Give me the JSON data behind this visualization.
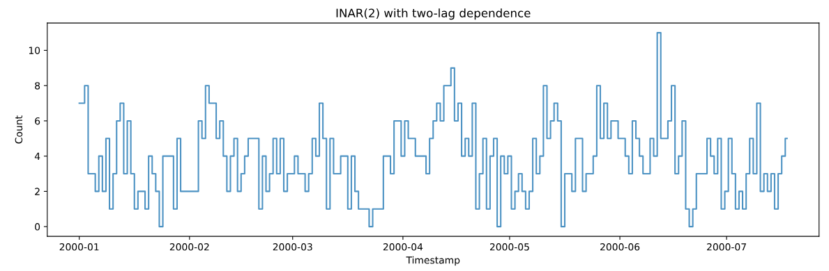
{
  "chart_data": {
    "type": "step",
    "title": "INAR(2) with two-lag dependence",
    "xlabel": "Timestamp",
    "ylabel": "Count",
    "x": [
      "2000-01-01",
      "2000-01-02",
      "2000-01-03",
      "2000-01-04",
      "2000-01-05",
      "2000-01-06",
      "2000-01-07",
      "2000-01-08",
      "2000-01-09",
      "2000-01-10",
      "2000-01-11",
      "2000-01-12",
      "2000-01-13",
      "2000-01-14",
      "2000-01-15",
      "2000-01-16",
      "2000-01-17",
      "2000-01-18",
      "2000-01-19",
      "2000-01-20",
      "2000-01-21",
      "2000-01-22",
      "2000-01-23",
      "2000-01-24",
      "2000-01-25",
      "2000-01-26",
      "2000-01-27",
      "2000-01-28",
      "2000-01-29",
      "2000-01-30",
      "2000-01-31",
      "2000-02-01",
      "2000-02-02",
      "2000-02-03",
      "2000-02-04",
      "2000-02-05",
      "2000-02-06",
      "2000-02-07",
      "2000-02-08",
      "2000-02-09",
      "2000-02-10",
      "2000-02-11",
      "2000-02-12",
      "2000-02-13",
      "2000-02-14",
      "2000-02-15",
      "2000-02-16",
      "2000-02-17",
      "2000-02-18",
      "2000-02-19",
      "2000-02-20",
      "2000-02-21",
      "2000-02-22",
      "2000-02-23",
      "2000-02-24",
      "2000-02-25",
      "2000-02-26",
      "2000-02-27",
      "2000-02-28",
      "2000-02-29",
      "2000-03-01",
      "2000-03-02",
      "2000-03-03",
      "2000-03-04",
      "2000-03-05",
      "2000-03-06",
      "2000-03-07",
      "2000-03-08",
      "2000-03-09",
      "2000-03-10",
      "2000-03-11",
      "2000-03-12",
      "2000-03-13",
      "2000-03-14",
      "2000-03-15",
      "2000-03-16",
      "2000-03-17",
      "2000-03-18",
      "2000-03-19",
      "2000-03-20",
      "2000-03-21",
      "2000-03-22",
      "2000-03-23",
      "2000-03-24",
      "2000-03-25",
      "2000-03-26",
      "2000-03-27",
      "2000-03-28",
      "2000-03-29",
      "2000-03-30",
      "2000-03-31",
      "2000-04-01",
      "2000-04-02",
      "2000-04-03",
      "2000-04-04",
      "2000-04-05",
      "2000-04-06",
      "2000-04-07",
      "2000-04-08",
      "2000-04-09",
      "2000-04-10",
      "2000-04-11",
      "2000-04-12",
      "2000-04-13",
      "2000-04-14",
      "2000-04-15",
      "2000-04-16",
      "2000-04-17",
      "2000-04-18",
      "2000-04-19",
      "2000-04-20",
      "2000-04-21",
      "2000-04-22",
      "2000-04-23",
      "2000-04-24",
      "2000-04-25",
      "2000-04-26",
      "2000-04-27",
      "2000-04-28",
      "2000-04-29",
      "2000-04-30",
      "2000-05-01",
      "2000-05-02",
      "2000-05-03",
      "2000-05-04",
      "2000-05-05",
      "2000-05-06",
      "2000-05-07",
      "2000-05-08",
      "2000-05-09",
      "2000-05-10",
      "2000-05-11",
      "2000-05-12",
      "2000-05-13",
      "2000-05-14",
      "2000-05-15",
      "2000-05-16",
      "2000-05-17",
      "2000-05-18",
      "2000-05-19",
      "2000-05-20",
      "2000-05-21",
      "2000-05-22",
      "2000-05-23",
      "2000-05-24",
      "2000-05-25",
      "2000-05-26",
      "2000-05-27",
      "2000-05-28",
      "2000-05-29",
      "2000-05-30",
      "2000-05-31",
      "2000-06-01",
      "2000-06-02",
      "2000-06-03",
      "2000-06-04",
      "2000-06-05",
      "2000-06-06",
      "2000-06-07",
      "2000-06-08",
      "2000-06-09",
      "2000-06-10",
      "2000-06-11",
      "2000-06-12",
      "2000-06-13",
      "2000-06-14",
      "2000-06-15",
      "2000-06-16",
      "2000-06-17",
      "2000-06-18",
      "2000-06-19",
      "2000-06-20",
      "2000-06-21",
      "2000-06-22",
      "2000-06-23",
      "2000-06-24",
      "2000-06-25",
      "2000-06-26",
      "2000-06-27",
      "2000-06-28",
      "2000-06-29",
      "2000-06-30",
      "2000-07-01",
      "2000-07-02",
      "2000-07-03",
      "2000-07-04",
      "2000-07-05",
      "2000-07-06",
      "2000-07-07",
      "2000-07-08",
      "2000-07-09",
      "2000-07-10",
      "2000-07-11",
      "2000-07-12",
      "2000-07-13",
      "2000-07-14",
      "2000-07-15",
      "2000-07-16",
      "2000-07-17",
      "2000-07-18"
    ],
    "series": [
      {
        "color": "#4c92c3",
        "values": [
          7,
          7,
          8,
          3,
          3,
          2,
          4,
          2,
          5,
          1,
          3,
          6,
          7,
          3,
          6,
          3,
          1,
          2,
          2,
          1,
          4,
          3,
          2,
          0,
          4,
          4,
          4,
          1,
          5,
          2,
          2,
          2,
          2,
          2,
          6,
          5,
          8,
          7,
          7,
          5,
          6,
          4,
          2,
          4,
          5,
          2,
          3,
          4,
          5,
          5,
          5,
          1,
          4,
          2,
          3,
          5,
          3,
          5,
          2,
          3,
          3,
          4,
          3,
          3,
          2,
          3,
          5,
          4,
          7,
          5,
          1,
          5,
          3,
          3,
          4,
          4,
          1,
          4,
          2,
          1,
          1,
          1,
          0,
          1,
          1,
          1,
          4,
          4,
          3,
          6,
          6,
          4,
          6,
          5,
          5,
          4,
          4,
          4,
          3,
          5,
          6,
          7,
          6,
          8,
          8,
          9,
          6,
          7,
          4,
          5,
          4,
          7,
          1,
          3,
          5,
          1,
          4,
          5,
          0,
          4,
          3,
          4,
          1,
          2,
          3,
          2,
          1,
          2,
          5,
          3,
          4,
          8,
          5,
          6,
          7,
          6,
          0,
          3,
          3,
          2,
          5,
          5,
          2,
          3,
          3,
          4,
          8,
          5,
          7,
          5,
          6,
          6,
          5,
          5,
          4,
          3,
          6,
          5,
          4,
          3,
          3,
          5,
          4,
          11,
          5,
          5,
          6,
          8,
          3,
          4,
          6,
          1,
          0,
          1,
          3,
          3,
          3,
          5,
          4,
          3,
          5,
          1,
          2,
          5,
          3,
          1,
          2,
          1,
          3,
          5,
          3,
          7,
          2,
          3,
          2,
          3,
          1,
          3,
          4,
          5
        ]
      }
    ],
    "xlim": [
      "1999-12-23",
      "2000-07-27"
    ],
    "xticks": [
      "2000-01",
      "2000-02",
      "2000-03",
      "2000-04",
      "2000-05",
      "2000-06",
      "2000-07"
    ],
    "ylim": [
      -0.55,
      11.55
    ],
    "yticks": [
      0,
      2,
      4,
      6,
      8,
      10
    ],
    "grid": false
  }
}
